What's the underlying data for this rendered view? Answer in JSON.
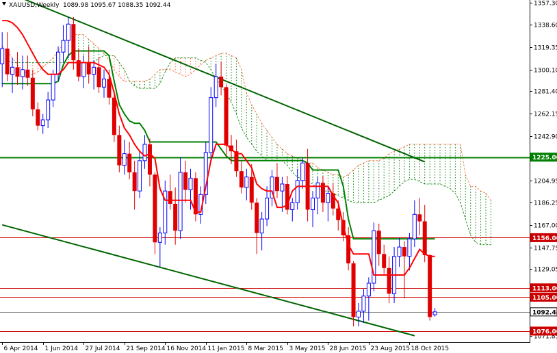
{
  "header": {
    "title": "XAUUSD,Weekly",
    "ohlc": "1089.98 1095.67 1088.35 1092.44",
    "dropdown_icon": "triangle-down-icon"
  },
  "colors": {
    "background": "#ffffff",
    "bull_candle": "#0000ff",
    "bear_candle": "#e00000",
    "kijun": "#008000",
    "tenkan": "#ff0000",
    "cloud_bear": "#ff6633",
    "cloud_bull": "#008000",
    "trendline": "#006400",
    "support_resistance": "#cc0000",
    "level_1225": "#008000",
    "current_price_line": "#777777"
  },
  "chart_data": {
    "type": "candlestick",
    "symbol": "XAUUSD",
    "timeframe": "Weekly",
    "price_axis": {
      "ticks": [
        1357.3,
        1338.6,
        1319.35,
        1300.1,
        1281.4,
        1262.15,
        1242.9,
        1204.95,
        1186.25,
        1167.0,
        1147.75,
        1129.05,
        1071.85
      ],
      "ylim": [
        1071.85,
        1357.3
      ]
    },
    "date_axis": {
      "ticks": [
        "6 Apr 2014",
        "1 Jun 2014",
        "27 Jul 2014",
        "21 Sep 2014",
        "16 Nov 2014",
        "11 Jan 2015",
        "8 Mar 2015",
        "3 May 2015",
        "28 Jun 2015",
        "23 Aug 2015",
        "18 Oct 2015"
      ]
    },
    "levels": [
      {
        "price": 1225.0,
        "label": "1225.00",
        "color": "#008000"
      },
      {
        "price": 1156.0,
        "label": "1156.00",
        "color": "#cc0000"
      },
      {
        "price": 1113.0,
        "label": "1113.00",
        "color": "#cc0000"
      },
      {
        "price": 1105.0,
        "label": "1105.00",
        "color": "#cc0000"
      },
      {
        "price": 1092.44,
        "label": "1092.44",
        "color": "#777777",
        "current": true
      },
      {
        "price": 1076.0,
        "label": "1076.00",
        "color": "#cc0000"
      }
    ],
    "trendlines": [
      {
        "name": "upper",
        "from": {
          "date": "6 Apr 2014",
          "price": 1368
        },
        "to": {
          "date": "8 Nov 2015",
          "price": 1221
        }
      },
      {
        "name": "lower",
        "from": {
          "date": "6 Apr 2014",
          "price": 1167
        },
        "to": {
          "date": "25 Oct 2015",
          "price": 1072
        }
      }
    ],
    "candles": [
      {
        "o": 1305,
        "h": 1332,
        "l": 1285,
        "c": 1318
      },
      {
        "o": 1318,
        "h": 1332,
        "l": 1290,
        "c": 1296
      },
      {
        "o": 1296,
        "h": 1310,
        "l": 1280,
        "c": 1302
      },
      {
        "o": 1302,
        "h": 1315,
        "l": 1287,
        "c": 1294
      },
      {
        "o": 1294,
        "h": 1312,
        "l": 1283,
        "c": 1300
      },
      {
        "o": 1300,
        "h": 1312,
        "l": 1286,
        "c": 1293
      },
      {
        "o": 1293,
        "h": 1300,
        "l": 1260,
        "c": 1266
      },
      {
        "o": 1266,
        "h": 1272,
        "l": 1248,
        "c": 1252
      },
      {
        "o": 1252,
        "h": 1262,
        "l": 1245,
        "c": 1257
      },
      {
        "o": 1257,
        "h": 1281,
        "l": 1250,
        "c": 1274
      },
      {
        "o": 1274,
        "h": 1300,
        "l": 1268,
        "c": 1296
      },
      {
        "o": 1296,
        "h": 1320,
        "l": 1290,
        "c": 1315
      },
      {
        "o": 1315,
        "h": 1338,
        "l": 1306,
        "c": 1325
      },
      {
        "o": 1325,
        "h": 1345,
        "l": 1310,
        "c": 1339
      },
      {
        "o": 1339,
        "h": 1345,
        "l": 1300,
        "c": 1308
      },
      {
        "o": 1308,
        "h": 1318,
        "l": 1290,
        "c": 1294
      },
      {
        "o": 1294,
        "h": 1312,
        "l": 1284,
        "c": 1306
      },
      {
        "o": 1306,
        "h": 1320,
        "l": 1288,
        "c": 1296
      },
      {
        "o": 1296,
        "h": 1308,
        "l": 1283,
        "c": 1302
      },
      {
        "o": 1302,
        "h": 1311,
        "l": 1280,
        "c": 1285
      },
      {
        "o": 1285,
        "h": 1300,
        "l": 1276,
        "c": 1292
      },
      {
        "o": 1292,
        "h": 1300,
        "l": 1270,
        "c": 1276
      },
      {
        "o": 1276,
        "h": 1282,
        "l": 1238,
        "c": 1244
      },
      {
        "o": 1244,
        "h": 1252,
        "l": 1212,
        "c": 1218
      },
      {
        "o": 1218,
        "h": 1240,
        "l": 1210,
        "c": 1228
      },
      {
        "o": 1228,
        "h": 1238,
        "l": 1206,
        "c": 1212
      },
      {
        "o": 1212,
        "h": 1222,
        "l": 1180,
        "c": 1196
      },
      {
        "o": 1196,
        "h": 1230,
        "l": 1190,
        "c": 1222
      },
      {
        "o": 1222,
        "h": 1244,
        "l": 1215,
        "c": 1236
      },
      {
        "o": 1236,
        "h": 1241,
        "l": 1200,
        "c": 1210
      },
      {
        "o": 1210,
        "h": 1212,
        "l": 1142,
        "c": 1152
      },
      {
        "o": 1152,
        "h": 1165,
        "l": 1131,
        "c": 1160
      },
      {
        "o": 1160,
        "h": 1205,
        "l": 1150,
        "c": 1196
      },
      {
        "o": 1196,
        "h": 1210,
        "l": 1180,
        "c": 1185
      },
      {
        "o": 1185,
        "h": 1199,
        "l": 1150,
        "c": 1162
      },
      {
        "o": 1162,
        "h": 1225,
        "l": 1155,
        "c": 1212
      },
      {
        "o": 1212,
        "h": 1222,
        "l": 1186,
        "c": 1197
      },
      {
        "o": 1197,
        "h": 1215,
        "l": 1180,
        "c": 1207
      },
      {
        "o": 1207,
        "h": 1212,
        "l": 1170,
        "c": 1176
      },
      {
        "o": 1176,
        "h": 1200,
        "l": 1168,
        "c": 1193
      },
      {
        "o": 1193,
        "h": 1238,
        "l": 1185,
        "c": 1229
      },
      {
        "o": 1229,
        "h": 1285,
        "l": 1222,
        "c": 1276
      },
      {
        "o": 1276,
        "h": 1305,
        "l": 1268,
        "c": 1294
      },
      {
        "o": 1294,
        "h": 1307,
        "l": 1278,
        "c": 1285
      },
      {
        "o": 1285,
        "h": 1287,
        "l": 1225,
        "c": 1235
      },
      {
        "o": 1235,
        "h": 1244,
        "l": 1219,
        "c": 1230
      },
      {
        "o": 1230,
        "h": 1240,
        "l": 1208,
        "c": 1213
      },
      {
        "o": 1213,
        "h": 1222,
        "l": 1194,
        "c": 1199
      },
      {
        "o": 1199,
        "h": 1215,
        "l": 1188,
        "c": 1208
      },
      {
        "o": 1208,
        "h": 1219,
        "l": 1180,
        "c": 1186
      },
      {
        "o": 1186,
        "h": 1190,
        "l": 1142,
        "c": 1160
      },
      {
        "o": 1160,
        "h": 1178,
        "l": 1145,
        "c": 1172
      },
      {
        "o": 1172,
        "h": 1200,
        "l": 1166,
        "c": 1190
      },
      {
        "o": 1190,
        "h": 1214,
        "l": 1183,
        "c": 1208
      },
      {
        "o": 1208,
        "h": 1220,
        "l": 1190,
        "c": 1196
      },
      {
        "o": 1196,
        "h": 1208,
        "l": 1178,
        "c": 1202
      },
      {
        "o": 1202,
        "h": 1209,
        "l": 1176,
        "c": 1180
      },
      {
        "o": 1180,
        "h": 1190,
        "l": 1170,
        "c": 1186
      },
      {
        "o": 1186,
        "h": 1215,
        "l": 1180,
        "c": 1205
      },
      {
        "o": 1205,
        "h": 1224,
        "l": 1198,
        "c": 1220
      },
      {
        "o": 1220,
        "h": 1232,
        "l": 1170,
        "c": 1180
      },
      {
        "o": 1180,
        "h": 1196,
        "l": 1165,
        "c": 1190
      },
      {
        "o": 1190,
        "h": 1208,
        "l": 1176,
        "c": 1203
      },
      {
        "o": 1203,
        "h": 1209,
        "l": 1178,
        "c": 1186
      },
      {
        "o": 1186,
        "h": 1200,
        "l": 1170,
        "c": 1194
      },
      {
        "o": 1194,
        "h": 1203,
        "l": 1175,
        "c": 1181
      },
      {
        "o": 1181,
        "h": 1188,
        "l": 1162,
        "c": 1171
      },
      {
        "o": 1171,
        "h": 1178,
        "l": 1153,
        "c": 1158
      },
      {
        "o": 1158,
        "h": 1165,
        "l": 1128,
        "c": 1134
      },
      {
        "o": 1134,
        "h": 1136,
        "l": 1080,
        "c": 1088
      },
      {
        "o": 1088,
        "h": 1100,
        "l": 1080,
        "c": 1093
      },
      {
        "o": 1093,
        "h": 1112,
        "l": 1083,
        "c": 1106
      },
      {
        "o": 1106,
        "h": 1122,
        "l": 1085,
        "c": 1117
      },
      {
        "o": 1117,
        "h": 1169,
        "l": 1110,
        "c": 1162
      },
      {
        "o": 1162,
        "h": 1168,
        "l": 1132,
        "c": 1142
      },
      {
        "o": 1142,
        "h": 1150,
        "l": 1125,
        "c": 1130
      },
      {
        "o": 1130,
        "h": 1140,
        "l": 1100,
        "c": 1108
      },
      {
        "o": 1108,
        "h": 1148,
        "l": 1100,
        "c": 1140
      },
      {
        "o": 1140,
        "h": 1156,
        "l": 1131,
        "c": 1148
      },
      {
        "o": 1148,
        "h": 1153,
        "l": 1104,
        "c": 1140
      },
      {
        "o": 1140,
        "h": 1160,
        "l": 1128,
        "c": 1155
      },
      {
        "o": 1155,
        "h": 1188,
        "l": 1148,
        "c": 1176
      },
      {
        "o": 1176,
        "h": 1190,
        "l": 1158,
        "c": 1170
      },
      {
        "o": 1170,
        "h": 1184,
        "l": 1135,
        "c": 1141
      },
      {
        "o": 1141,
        "h": 1142,
        "l": 1085,
        "c": 1088
      },
      {
        "o": 1089.98,
        "h": 1095.67,
        "l": 1088.35,
        "c": 1092.44
      }
    ],
    "tenkan_sen": [
      1342,
      1342,
      1340,
      1336,
      1330,
      1322,
      1314,
      1306,
      1300,
      1296,
      1296,
      1296,
      1300,
      1306,
      1306,
      1306,
      1306,
      1306,
      1306,
      1304,
      1302,
      1296,
      1280,
      1262,
      1250,
      1244,
      1236,
      1230,
      1226,
      1228,
      1224,
      1198,
      1188,
      1188,
      1188,
      1188,
      1188,
      1188,
      1178,
      1178,
      1200,
      1222,
      1236,
      1236,
      1236,
      1232,
      1228,
      1228,
      1222,
      1216,
      1202,
      1198,
      1196,
      1196,
      1182,
      1182,
      1184,
      1196,
      1200,
      1200,
      1200,
      1200,
      1200,
      1200,
      1200,
      1192,
      1186,
      1166,
      1150,
      1142,
      1142,
      1142,
      1142,
      1124,
      1124,
      1124,
      1124,
      1124,
      1124,
      1124,
      1130,
      1138,
      1146,
      1142,
      1140,
      1140
    ],
    "kijun_sen": [
      1288,
      1288,
      1288,
      1288,
      1288,
      1288,
      1288,
      1288,
      1288,
      1288,
      1288,
      1290,
      1304,
      1312,
      1316,
      1316,
      1316,
      1316,
      1316,
      1316,
      1316,
      1312,
      1290,
      1270,
      1262,
      1256,
      1254,
      1254,
      1248,
      1238,
      1238,
      1238,
      1238,
      1238,
      1238,
      1238,
      1238,
      1238,
      1238,
      1238,
      1238,
      1238,
      1238,
      1232,
      1226,
      1222,
      1222,
      1222,
      1222,
      1222,
      1222,
      1222,
      1222,
      1222,
      1222,
      1222,
      1222,
      1222,
      1222,
      1222,
      1220,
      1214,
      1214,
      1214,
      1214,
      1214,
      1214,
      1200,
      1172,
      1155,
      1155,
      1155,
      1155,
      1155,
      1155,
      1155,
      1155,
      1155,
      1155,
      1155,
      1155,
      1155,
      1155,
      1155,
      1155,
      1155
    ],
    "senkou_a": [
      1320,
      1316,
      1310,
      1304,
      1300,
      1296,
      1296,
      1298,
      1302,
      1306,
      1310,
      1316,
      1322,
      1328,
      1330,
      1330,
      1330,
      1326,
      1322,
      1318,
      1314,
      1308,
      1300,
      1294,
      1290,
      1290,
      1290,
      1290,
      1290,
      1292,
      1296,
      1300,
      1300,
      1300,
      1298,
      1296,
      1294,
      1296,
      1300,
      1304,
      1308,
      1310,
      1312,
      1314,
      1314,
      1312,
      1310,
      1300,
      1280,
      1270,
      1262,
      1254,
      1248,
      1242,
      1236,
      1232,
      1228,
      1226,
      1224,
      1222,
      1220,
      1220,
      1216,
      1214,
      1212,
      1210,
      1210,
      1208,
      1210,
      1214,
      1218,
      1220,
      1222,
      1222,
      1222,
      1224,
      1228,
      1230,
      1232,
      1234,
      1236,
      1236,
      1236,
      1236,
      1236,
      1236,
      1236,
      1236,
      1236,
      1236,
      1236,
      1210,
      1200,
      1200,
      1196,
      1194,
      1188
    ],
    "senkou_b": [
      1310,
      1308,
      1306,
      1306,
      1306,
      1306,
      1306,
      1306,
      1306,
      1306,
      1306,
      1306,
      1306,
      1306,
      1306,
      1306,
      1306,
      1306,
      1306,
      1310,
      1312,
      1312,
      1312,
      1306,
      1300,
      1290,
      1286,
      1284,
      1284,
      1284,
      1284,
      1288,
      1298,
      1306,
      1310,
      1310,
      1310,
      1310,
      1310,
      1308,
      1306,
      1300,
      1292,
      1286,
      1280,
      1272,
      1262,
      1250,
      1242,
      1236,
      1230,
      1226,
      1222,
      1222,
      1222,
      1222,
      1218,
      1212,
      1208,
      1206,
      1204,
      1202,
      1198,
      1196,
      1196,
      1194,
      1192,
      1190,
      1188,
      1186,
      1186,
      1186,
      1186,
      1186,
      1188,
      1190,
      1192,
      1196,
      1200,
      1204,
      1206,
      1206,
      1204,
      1202,
      1202,
      1202,
      1202,
      1200,
      1198,
      1194,
      1186,
      1172,
      1158,
      1152,
      1150,
      1150,
      1150
    ]
  }
}
